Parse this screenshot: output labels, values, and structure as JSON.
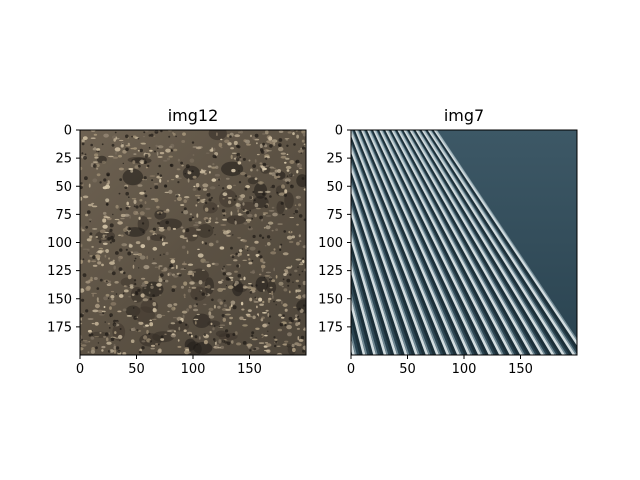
{
  "chart_data": [
    {
      "type": "image",
      "title": "img12",
      "texture": "gravel",
      "xlim": [
        0,
        200
      ],
      "ylim": [
        200,
        0
      ],
      "xticks": [
        0,
        50,
        100,
        150
      ],
      "yticks": [
        0,
        25,
        50,
        75,
        100,
        125,
        150,
        175
      ],
      "xtick_labels": [
        "0",
        "50",
        "100",
        "150"
      ],
      "ytick_labels": [
        "0",
        "25",
        "50",
        "75",
        "100",
        "125",
        "150",
        "175"
      ]
    },
    {
      "type": "image",
      "title": "img7",
      "texture": "corrugated-metal",
      "xlim": [
        0,
        200
      ],
      "ylim": [
        200,
        0
      ],
      "xticks": [
        0,
        50,
        100,
        150
      ],
      "yticks": [
        0,
        25,
        50,
        75,
        100,
        125,
        150,
        175
      ],
      "xtick_labels": [
        "0",
        "50",
        "100",
        "150"
      ],
      "ytick_labels": [
        "0",
        "25",
        "50",
        "75",
        "100",
        "125",
        "150",
        "175"
      ]
    }
  ]
}
